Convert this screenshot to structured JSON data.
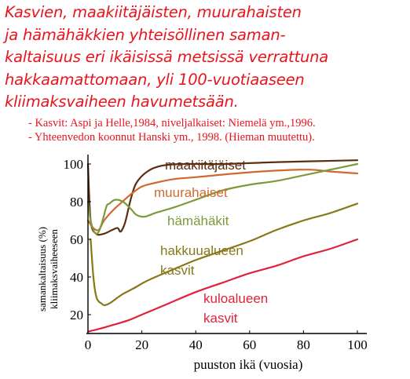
{
  "title_lines": [
    "Kasvien, maakiitäjäisten, muurahaisten",
    "ja hämähäkkien yhteisöllinen saman-",
    "kaltaisuus eri ikäisissä metsissä verrattuna",
    "hakkaamattomaan, yli 100-vuotiaaseen",
    "kliimaksvaiheen havumetsään."
  ],
  "source_lines": [
    "- Kasvit: Aspi ja Helle,1984, niveljalkaiset: Niemelä ym.,1996.",
    "- Yhteenvedon koonnut Hanski ym., 1998. (Hieman muutettu)."
  ],
  "colors": {
    "title": "#e8141e",
    "maakiitajaiset": "#5b2d12",
    "muurahaiset": "#d0692e",
    "hamahakit": "#7d9a3a",
    "hakkuualueen_kasvit": "#8a7818",
    "kuloalueen_kasvit": "#e0223c"
  },
  "chart_data": {
    "type": "line",
    "xlabel": "puuston ikä (vuosia)",
    "ylabel_lines": [
      "samankaltaisuus (%)",
      "kliimaksvaiheeseen"
    ],
    "xlim": [
      0,
      100
    ],
    "ylim": [
      10,
      105
    ],
    "x_ticks": [
      0,
      20,
      40,
      60,
      80,
      100
    ],
    "y_ticks": [
      20,
      40,
      60,
      80,
      100
    ],
    "grid": false,
    "series": [
      {
        "name": "maakiitäjäiset",
        "label_lines": [
          "maakiitäjäiset"
        ],
        "color_key": "maakiitajaiset",
        "points": [
          [
            0,
            100
          ],
          [
            1,
            70
          ],
          [
            3,
            63
          ],
          [
            6,
            63
          ],
          [
            9,
            65
          ],
          [
            11,
            66
          ],
          [
            12,
            64
          ],
          [
            13,
            66
          ],
          [
            14,
            70
          ],
          [
            16,
            82
          ],
          [
            18,
            90
          ],
          [
            22,
            96
          ],
          [
            27,
            99
          ],
          [
            35,
            100
          ],
          [
            50,
            100
          ],
          [
            70,
            101
          ],
          [
            85,
            101.5
          ],
          [
            100,
            102
          ]
        ]
      },
      {
        "name": "muurahaiset",
        "label_lines": [
          "muurahaiset"
        ],
        "color_key": "muurahaiset",
        "points": [
          [
            0,
            70
          ],
          [
            2,
            66
          ],
          [
            4,
            65
          ],
          [
            6,
            70
          ],
          [
            9,
            75
          ],
          [
            12,
            79
          ],
          [
            16,
            84
          ],
          [
            20,
            88
          ],
          [
            25,
            90
          ],
          [
            32,
            92
          ],
          [
            40,
            93
          ],
          [
            55,
            95
          ],
          [
            70,
            96.5
          ],
          [
            82,
            97
          ],
          [
            90,
            96
          ],
          [
            100,
            95
          ]
        ]
      },
      {
        "name": "hämähäkit",
        "label_lines": [
          "hämähäkit"
        ],
        "color_key": "hamahakit",
        "points": [
          [
            0,
            80
          ],
          [
            1,
            70
          ],
          [
            2,
            65
          ],
          [
            3,
            63
          ],
          [
            4,
            64
          ],
          [
            5,
            68
          ],
          [
            6,
            73
          ],
          [
            7,
            78
          ],
          [
            8,
            79
          ],
          [
            10,
            81
          ],
          [
            13,
            80
          ],
          [
            16,
            76
          ],
          [
            18,
            73
          ],
          [
            21,
            72
          ],
          [
            25,
            74
          ],
          [
            32,
            77
          ],
          [
            40,
            81
          ],
          [
            50,
            86
          ],
          [
            60,
            89
          ],
          [
            70,
            91
          ],
          [
            80,
            94
          ],
          [
            90,
            97
          ],
          [
            100,
            100
          ]
        ]
      },
      {
        "name": "hakkuualueen kasvit",
        "label_lines": [
          "hakkuualueen",
          "kasvit"
        ],
        "color_key": "hakkuualueen_kasvit",
        "points": [
          [
            1,
            60
          ],
          [
            2,
            40
          ],
          [
            3,
            30
          ],
          [
            4,
            27
          ],
          [
            5,
            26
          ],
          [
            6,
            25
          ],
          [
            8,
            26
          ],
          [
            10,
            28
          ],
          [
            13,
            31
          ],
          [
            17,
            34
          ],
          [
            22,
            38
          ],
          [
            30,
            43
          ],
          [
            40,
            49
          ],
          [
            50,
            54
          ],
          [
            60,
            59
          ],
          [
            70,
            65
          ],
          [
            80,
            70
          ],
          [
            90,
            74
          ],
          [
            100,
            79
          ]
        ]
      },
      {
        "name": "kuloalueen kasvit",
        "label_lines": [
          "kuloalueen",
          "kasvit"
        ],
        "color_key": "kuloalueen_kasvit",
        "points": [
          [
            0,
            11
          ],
          [
            3,
            12
          ],
          [
            8,
            14
          ],
          [
            15,
            17
          ],
          [
            20,
            20
          ],
          [
            30,
            26
          ],
          [
            40,
            32
          ],
          [
            50,
            37
          ],
          [
            60,
            42
          ],
          [
            70,
            46
          ],
          [
            80,
            51
          ],
          [
            90,
            55
          ],
          [
            100,
            60
          ]
        ]
      }
    ]
  }
}
